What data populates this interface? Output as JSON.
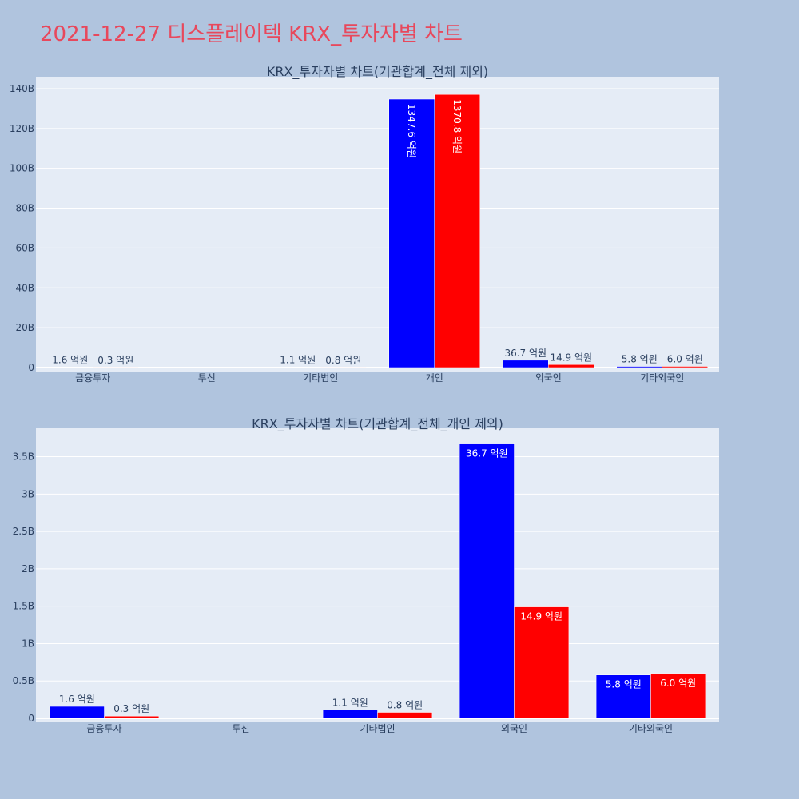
{
  "page": {
    "title": "2021-12-27 디스플레이텍 KRX_투자자별 차트"
  },
  "colors": {
    "background": "#b0c4de",
    "plot_background": "#e5ecf6",
    "title": "#e8485c",
    "series_buy": "#0000ff",
    "series_sell": "#ff0000",
    "grid": "#ffffff",
    "text": "#2a3f5f"
  },
  "chart_data": [
    {
      "type": "bar",
      "title": "KRX_투자자별 차트(기관합계_전체 제외)",
      "categories": [
        "금융투자",
        "투신",
        "기타법인",
        "개인",
        "외국인",
        "기타외국인"
      ],
      "series": [
        {
          "values": [
            160000000,
            0,
            110000000,
            134760000000,
            3670000000,
            580000000
          ],
          "labels": [
            "1.6 억원",
            "",
            "1.1 억원",
            "1347.6 억원",
            "36.7 억원",
            "5.8 억원"
          ]
        },
        {
          "values": [
            30000000,
            0,
            80000000,
            137080000000,
            1490000000,
            600000000
          ],
          "labels": [
            "0.3 억원",
            "",
            "0.8 억원",
            "1370.8 억원",
            "14.9 억원",
            "6.0 억원"
          ]
        }
      ],
      "yticks": [
        0,
        20000000000,
        40000000000,
        60000000000,
        80000000000,
        100000000000,
        120000000000,
        140000000000
      ],
      "ytick_labels": [
        "0",
        "20B",
        "40B",
        "60B",
        "80B",
        "100B",
        "120B",
        "140B"
      ],
      "ylim": [
        0,
        146000000000
      ],
      "grid": true,
      "legend": "none"
    },
    {
      "type": "bar",
      "title": "KRX_투자자별 차트(기관합계_전체_개인 제외)",
      "categories": [
        "금융투자",
        "투신",
        "기타법인",
        "외국인",
        "기타외국인"
      ],
      "series": [
        {
          "values": [
            160000000,
            0,
            110000000,
            3670000000,
            580000000
          ],
          "labels": [
            "1.6 억원",
            "",
            "1.1 억원",
            "36.7 억원",
            "5.8 억원"
          ]
        },
        {
          "values": [
            30000000,
            0,
            80000000,
            1490000000,
            600000000
          ],
          "labels": [
            "0.3 억원",
            "",
            "0.8 억원",
            "14.9 억원",
            "6.0 억원"
          ]
        }
      ],
      "yticks": [
        0,
        500000000,
        1000000000,
        1500000000,
        2000000000,
        2500000000,
        3000000000,
        3500000000
      ],
      "ytick_labels": [
        "0",
        "0.5B",
        "1B",
        "1.5B",
        "2B",
        "2.5B",
        "3B",
        "3.5B"
      ],
      "ylim": [
        0,
        3880000000
      ],
      "grid": true,
      "legend": "none"
    }
  ]
}
